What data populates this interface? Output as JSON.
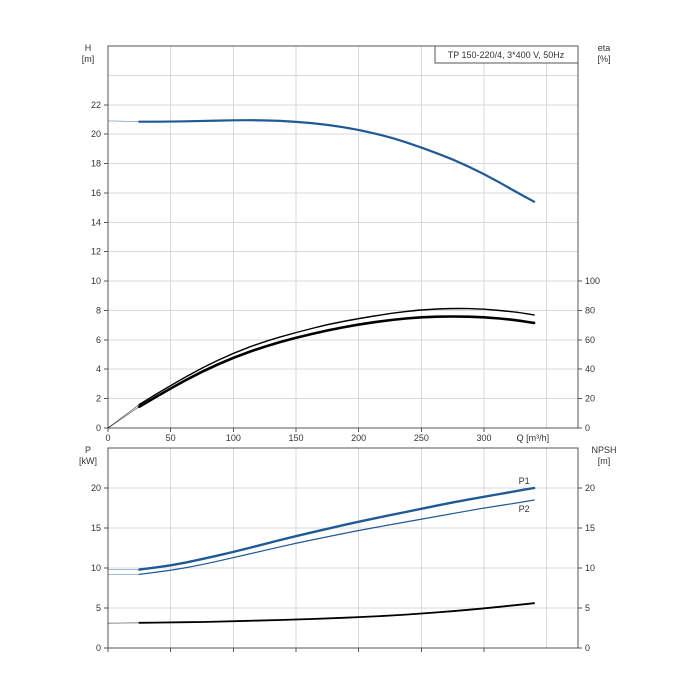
{
  "chart_data": [
    {
      "type": "line",
      "title": "TP 150-220/4, 3*400 V, 50Hz",
      "xlabel": "Q [m³/h]",
      "xlim": [
        0,
        375
      ],
      "xticks": [
        0,
        50,
        100,
        150,
        200,
        250,
        300
      ],
      "grid": true,
      "y_left": {
        "label_line1": "H",
        "label_line2": "[m]",
        "lim": [
          0,
          26
        ],
        "ticks": [
          0,
          2,
          4,
          6,
          8,
          10,
          12,
          14,
          16,
          18,
          20,
          22
        ]
      },
      "y_right": {
        "label_line1": "eta",
        "label_line2": "[%]",
        "lim": [
          0,
          260
        ],
        "ticks": [
          0,
          20,
          40,
          60,
          80,
          100
        ]
      },
      "series": [
        {
          "axis": "left",
          "color": "#1f5a96",
          "width": 2.2,
          "x": [
            0,
            25,
            50,
            75,
            100,
            125,
            150,
            175,
            200,
            225,
            250,
            275,
            300,
            325,
            340
          ],
          "y": [
            20.9,
            20.85,
            20.85,
            20.9,
            20.95,
            20.95,
            20.85,
            20.65,
            20.3,
            19.8,
            19.1,
            18.3,
            17.3,
            16.1,
            15.4
          ],
          "dashed_prefix_until": 25
        },
        {
          "axis": "right",
          "color": "#000000",
          "width": 1.4,
          "x": [
            0,
            25,
            50,
            75,
            100,
            125,
            150,
            175,
            200,
            225,
            250,
            275,
            300,
            325,
            340
          ],
          "y": [
            0,
            16,
            29,
            41,
            51,
            59,
            65,
            70.5,
            74.5,
            78,
            80.5,
            81.5,
            81,
            79,
            77
          ],
          "dashed_prefix_until": 25
        },
        {
          "axis": "right",
          "color": "#000000",
          "width": 2.6,
          "x": [
            0,
            25,
            50,
            75,
            100,
            125,
            150,
            175,
            200,
            225,
            250,
            275,
            300,
            325,
            340
          ],
          "y": [
            0,
            14.5,
            27,
            38.5,
            48,
            55.5,
            61.5,
            66.5,
            70.5,
            73.5,
            75.5,
            76,
            75.5,
            73.5,
            71.5
          ],
          "dashed_prefix_until": 25
        }
      ]
    },
    {
      "type": "line",
      "xlim": [
        0,
        375
      ],
      "xticks": [
        0,
        50,
        100,
        150,
        200,
        250,
        300
      ],
      "grid": true,
      "y_left": {
        "label_line1": "P",
        "label_line2": "[kW]",
        "lim": [
          0,
          25
        ],
        "ticks": [
          0,
          5,
          10,
          15,
          20
        ]
      },
      "y_right": {
        "label_line1": "NPSH",
        "label_line2": "[m]",
        "lim": [
          0,
          25
        ],
        "ticks": [
          0,
          5,
          10,
          15,
          20
        ]
      },
      "series": [
        {
          "name": "P1",
          "axis": "left",
          "color": "#1f5a96",
          "width": 2.4,
          "x": [
            0,
            25,
            50,
            75,
            100,
            125,
            150,
            175,
            200,
            225,
            250,
            275,
            300,
            325,
            340
          ],
          "y": [
            9.8,
            9.8,
            10.3,
            11.1,
            12.0,
            13.0,
            14.0,
            14.9,
            15.8,
            16.6,
            17.4,
            18.2,
            18.9,
            19.6,
            20.0
          ],
          "dashed_prefix_until": 25
        },
        {
          "name": "P2",
          "axis": "left",
          "color": "#1f5a96",
          "width": 1.2,
          "x": [
            0,
            25,
            50,
            75,
            100,
            125,
            150,
            175,
            200,
            225,
            250,
            275,
            300,
            325,
            340
          ],
          "y": [
            9.2,
            9.2,
            9.7,
            10.4,
            11.3,
            12.2,
            13.1,
            13.9,
            14.7,
            15.4,
            16.1,
            16.8,
            17.5,
            18.1,
            18.5
          ],
          "dashed_prefix_until": 25
        },
        {
          "axis": "right",
          "color": "#000000",
          "width": 1.8,
          "x": [
            0,
            25,
            50,
            75,
            100,
            125,
            150,
            175,
            200,
            225,
            250,
            275,
            300,
            325,
            340
          ],
          "y": [
            3.1,
            3.15,
            3.2,
            3.25,
            3.35,
            3.45,
            3.55,
            3.7,
            3.85,
            4.05,
            4.3,
            4.6,
            4.95,
            5.35,
            5.6
          ],
          "dashed_prefix_until": 25
        }
      ]
    }
  ]
}
